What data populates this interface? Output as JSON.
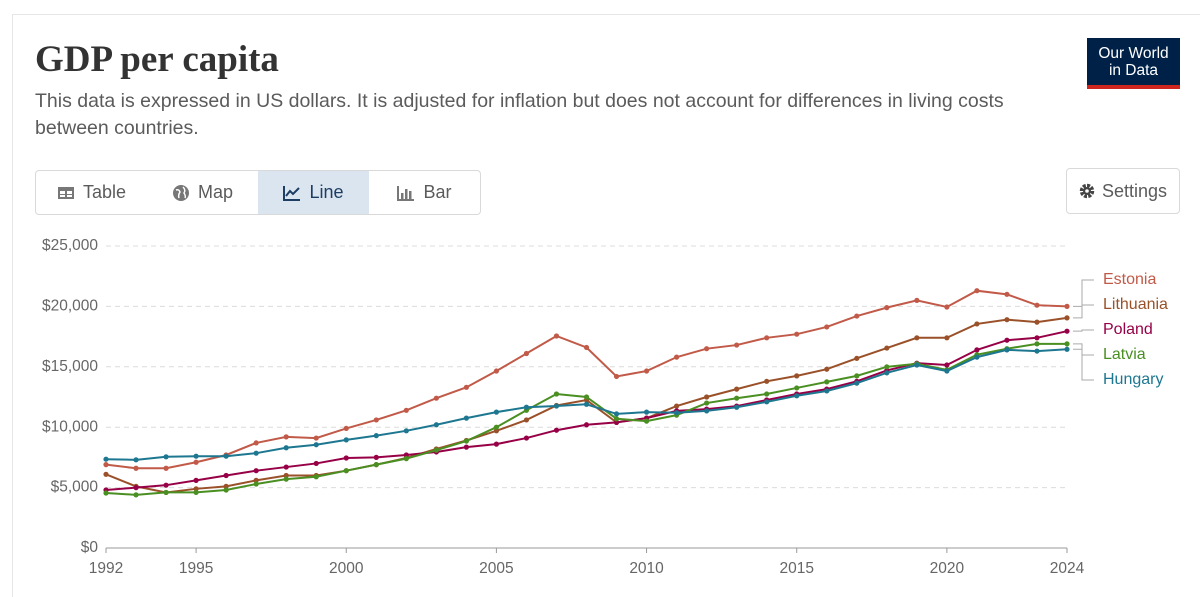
{
  "controls": {
    "tabs": [
      "Table",
      "Map",
      "Line",
      "Bar"
    ],
    "active_tab": "Line",
    "settings": "Settings",
    "logo": [
      "Our World",
      "in Data"
    ]
  },
  "chart_data": {
    "type": "line",
    "title": "GDP per capita",
    "subtitle": "This data is expressed in US dollars. It is adjusted for inflation but does not account for differences in living costs between countries.",
    "x": [
      1992,
      1993,
      1994,
      1995,
      1996,
      1997,
      1998,
      1999,
      2000,
      2001,
      2002,
      2003,
      2004,
      2005,
      2006,
      2007,
      2008,
      2009,
      2010,
      2011,
      2012,
      2013,
      2014,
      2015,
      2016,
      2017,
      2018,
      2019,
      2020,
      2021,
      2022,
      2023,
      2024
    ],
    "xlim": [
      1992,
      2024
    ],
    "xticks": [
      1992,
      1995,
      2000,
      2005,
      2010,
      2015,
      2020,
      2024
    ],
    "ylim": [
      0,
      25000
    ],
    "yticks": [
      {
        "value": 0,
        "label": "$0"
      },
      {
        "value": 5000,
        "label": "$5,000"
      },
      {
        "value": 10000,
        "label": "$10,000"
      },
      {
        "value": 15000,
        "label": "$15,000"
      },
      {
        "value": 20000,
        "label": "$20,000"
      },
      {
        "value": 25000,
        "label": "$25,000"
      }
    ],
    "grid": true,
    "series": [
      {
        "name": "Estonia",
        "color": "#c15a48",
        "values": [
          6900,
          6600,
          6600,
          7100,
          7700,
          8700,
          9200,
          9100,
          9900,
          10600,
          11400,
          12400,
          13300,
          14650,
          16100,
          17550,
          16600,
          14200,
          14650,
          15800,
          16500,
          16800,
          17400,
          17700,
          18300,
          19200,
          19900,
          20500,
          19950,
          21300,
          21000,
          20100,
          20000
        ]
      },
      {
        "name": "Lithuania",
        "color": "#9a5129",
        "values": [
          6100,
          5100,
          4600,
          4900,
          5100,
          5600,
          6000,
          6000,
          6400,
          6900,
          7450,
          8200,
          8900,
          9700,
          10600,
          11800,
          12250,
          10400,
          10750,
          11750,
          12500,
          13150,
          13800,
          14250,
          14800,
          15700,
          16550,
          17400,
          17400,
          18550,
          18900,
          18700,
          19050
        ]
      },
      {
        "name": "Poland",
        "color": "#970046",
        "values": [
          4800,
          5000,
          5200,
          5600,
          6000,
          6400,
          6700,
          7000,
          7450,
          7500,
          7700,
          7950,
          8350,
          8600,
          9100,
          9750,
          10200,
          10400,
          10750,
          11350,
          11500,
          11750,
          12250,
          12750,
          13150,
          13800,
          14700,
          15300,
          15150,
          16400,
          17200,
          17400,
          17950
        ]
      },
      {
        "name": "Latvia",
        "color": "#4a8f22",
        "values": [
          4550,
          4400,
          4600,
          4600,
          4800,
          5300,
          5700,
          5900,
          6400,
          6900,
          7400,
          8100,
          8850,
          10000,
          11400,
          12750,
          12500,
          10700,
          10500,
          11000,
          12000,
          12400,
          12750,
          13250,
          13750,
          14250,
          15000,
          15250,
          14750,
          16000,
          16500,
          16900,
          16900
        ]
      },
      {
        "name": "Hungary",
        "color": "#1d7790",
        "values": [
          7350,
          7300,
          7550,
          7600,
          7600,
          7850,
          8300,
          8550,
          8950,
          9300,
          9700,
          10200,
          10750,
          11250,
          11650,
          11750,
          11900,
          11100,
          11250,
          11200,
          11350,
          11650,
          12100,
          12600,
          13000,
          13650,
          14500,
          15150,
          14650,
          15800,
          16400,
          16300,
          16450
        ]
      }
    ]
  }
}
